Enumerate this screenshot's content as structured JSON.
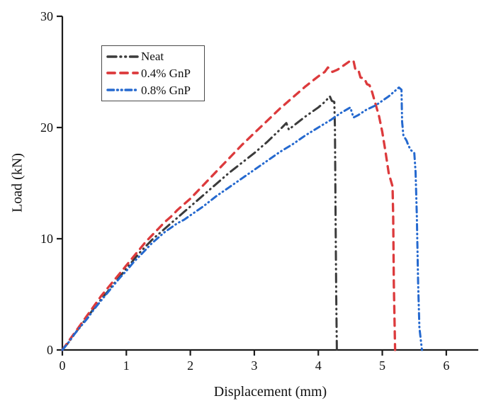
{
  "chart_data": {
    "type": "line",
    "title": "",
    "xlabel": "Displacement (mm)",
    "ylabel": "Load (kN)",
    "xlim": [
      0,
      6.5
    ],
    "ylim": [
      0,
      30
    ],
    "x_ticks": [
      0,
      1,
      2,
      3,
      4,
      5,
      6
    ],
    "y_ticks": [
      0,
      10,
      20,
      30
    ],
    "grid": false,
    "legend_position": "upper-left-inside",
    "axis_color": "#1c1c1c",
    "series": [
      {
        "name": "Neat",
        "color": "#3b3b3b",
        "dash": "dash-dot-dot",
        "points": [
          [
            0,
            0
          ],
          [
            0.1,
            0.7
          ],
          [
            0.2,
            1.5
          ],
          [
            0.3,
            2.3
          ],
          [
            0.4,
            3.0
          ],
          [
            0.5,
            3.8
          ],
          [
            0.6,
            4.5
          ],
          [
            0.7,
            5.2
          ],
          [
            0.8,
            5.9
          ],
          [
            0.9,
            6.6
          ],
          [
            1.0,
            7.3
          ],
          [
            1.1,
            8.0
          ],
          [
            1.2,
            8.7
          ],
          [
            1.3,
            9.3
          ],
          [
            1.4,
            9.9
          ],
          [
            1.5,
            10.4
          ],
          [
            1.6,
            10.9
          ],
          [
            1.7,
            11.4
          ],
          [
            1.8,
            11.9
          ],
          [
            1.9,
            12.4
          ],
          [
            2.0,
            12.9
          ],
          [
            2.2,
            13.9
          ],
          [
            2.4,
            14.9
          ],
          [
            2.6,
            15.9
          ],
          [
            2.8,
            16.8
          ],
          [
            3.0,
            17.7
          ],
          [
            3.2,
            18.7
          ],
          [
            3.4,
            19.8
          ],
          [
            3.5,
            20.4
          ],
          [
            3.54,
            19.8
          ],
          [
            3.6,
            20.1
          ],
          [
            3.8,
            21.0
          ],
          [
            4.0,
            21.8
          ],
          [
            4.1,
            22.3
          ],
          [
            4.18,
            22.8
          ],
          [
            4.21,
            22.4
          ],
          [
            4.25,
            22.3
          ],
          [
            4.26,
            20.0
          ],
          [
            4.27,
            12.0
          ],
          [
            4.28,
            5.0
          ],
          [
            4.29,
            0
          ]
        ]
      },
      {
        "name": "0.4% GnP",
        "color": "#dc3a3c",
        "dash": "dashed",
        "points": [
          [
            0,
            0
          ],
          [
            0.1,
            0.8
          ],
          [
            0.2,
            1.6
          ],
          [
            0.3,
            2.4
          ],
          [
            0.4,
            3.2
          ],
          [
            0.5,
            4.0
          ],
          [
            0.6,
            4.8
          ],
          [
            0.7,
            5.5
          ],
          [
            0.8,
            6.2
          ],
          [
            0.9,
            6.9
          ],
          [
            1.0,
            7.6
          ],
          [
            1.1,
            8.3
          ],
          [
            1.2,
            9.0
          ],
          [
            1.3,
            9.7
          ],
          [
            1.4,
            10.3
          ],
          [
            1.5,
            10.9
          ],
          [
            1.6,
            11.5
          ],
          [
            1.7,
            12.0
          ],
          [
            1.8,
            12.6
          ],
          [
            1.9,
            13.1
          ],
          [
            2.0,
            13.6
          ],
          [
            2.2,
            14.8
          ],
          [
            2.4,
            16.0
          ],
          [
            2.6,
            17.2
          ],
          [
            2.8,
            18.4
          ],
          [
            3.0,
            19.5
          ],
          [
            3.2,
            20.6
          ],
          [
            3.4,
            21.7
          ],
          [
            3.6,
            22.7
          ],
          [
            3.8,
            23.7
          ],
          [
            4.0,
            24.6
          ],
          [
            4.1,
            25.0
          ],
          [
            4.15,
            25.4
          ],
          [
            4.22,
            25.0
          ],
          [
            4.3,
            25.2
          ],
          [
            4.4,
            25.6
          ],
          [
            4.5,
            26.0
          ],
          [
            4.55,
            26.0
          ],
          [
            4.58,
            25.2
          ],
          [
            4.63,
            25.1
          ],
          [
            4.66,
            24.5
          ],
          [
            4.72,
            24.4
          ],
          [
            4.76,
            23.9
          ],
          [
            4.8,
            23.8
          ],
          [
            4.84,
            23.2
          ],
          [
            4.9,
            22.0
          ],
          [
            4.95,
            21.0
          ],
          [
            5.0,
            19.6
          ],
          [
            5.05,
            17.8
          ],
          [
            5.1,
            15.9
          ],
          [
            5.13,
            15.3
          ],
          [
            5.16,
            14.7
          ],
          [
            5.17,
            12.0
          ],
          [
            5.18,
            6.0
          ],
          [
            5.2,
            0
          ]
        ]
      },
      {
        "name": "0.8% GnP",
        "color": "#2569cf",
        "dash": "short-dash-dot-dot",
        "points": [
          [
            0,
            0
          ],
          [
            0.1,
            0.7
          ],
          [
            0.2,
            1.5
          ],
          [
            0.3,
            2.2
          ],
          [
            0.4,
            2.9
          ],
          [
            0.5,
            3.7
          ],
          [
            0.6,
            4.4
          ],
          [
            0.7,
            5.1
          ],
          [
            0.8,
            5.8
          ],
          [
            0.9,
            6.5
          ],
          [
            1.0,
            7.1
          ],
          [
            1.1,
            7.8
          ],
          [
            1.2,
            8.4
          ],
          [
            1.3,
            9.0
          ],
          [
            1.4,
            9.6
          ],
          [
            1.5,
            10.1
          ],
          [
            1.6,
            10.6
          ],
          [
            1.7,
            11.0
          ],
          [
            1.8,
            11.4
          ],
          [
            1.9,
            11.7
          ],
          [
            2.0,
            12.1
          ],
          [
            2.2,
            12.9
          ],
          [
            2.4,
            13.8
          ],
          [
            2.6,
            14.6
          ],
          [
            2.8,
            15.4
          ],
          [
            3.0,
            16.2
          ],
          [
            3.2,
            17.0
          ],
          [
            3.4,
            17.8
          ],
          [
            3.6,
            18.5
          ],
          [
            3.8,
            19.3
          ],
          [
            4.0,
            20.0
          ],
          [
            4.2,
            20.7
          ],
          [
            4.35,
            21.3
          ],
          [
            4.5,
            21.8
          ],
          [
            4.55,
            20.9
          ],
          [
            4.62,
            21.1
          ],
          [
            4.75,
            21.6
          ],
          [
            4.9,
            22.0
          ],
          [
            5.0,
            22.4
          ],
          [
            5.1,
            22.8
          ],
          [
            5.2,
            23.3
          ],
          [
            5.26,
            23.6
          ],
          [
            5.3,
            23.4
          ],
          [
            5.31,
            20.5
          ],
          [
            5.33,
            19.3
          ],
          [
            5.38,
            18.8
          ],
          [
            5.4,
            18.5
          ],
          [
            5.44,
            18.0
          ],
          [
            5.5,
            17.7
          ],
          [
            5.52,
            16.0
          ],
          [
            5.54,
            12.0
          ],
          [
            5.56,
            6.0
          ],
          [
            5.58,
            2.0
          ],
          [
            5.62,
            0
          ]
        ]
      }
    ]
  }
}
